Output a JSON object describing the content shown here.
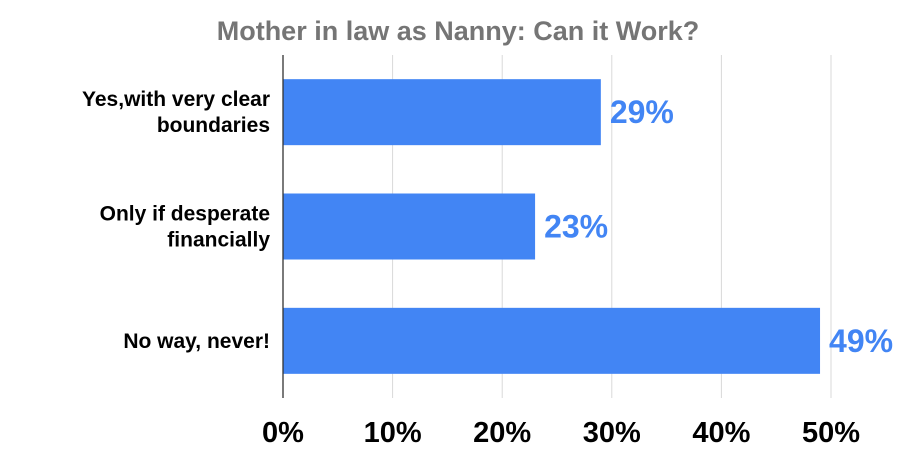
{
  "chart_data": {
    "type": "bar",
    "orientation": "horizontal",
    "title": "Mother in law as Nanny: Can it Work?",
    "categories": [
      [
        "Yes,with very clear",
        "boundaries"
      ],
      [
        "Only if desperate",
        "financially"
      ],
      [
        "No way, never!"
      ]
    ],
    "values": [
      29,
      23,
      49
    ],
    "data_labels": [
      "29%",
      "23%",
      "49%"
    ],
    "xlim": [
      0,
      50
    ],
    "xticks": [
      0,
      10,
      20,
      30,
      40,
      50
    ],
    "xtick_labels": [
      "0%",
      "10%",
      "20%",
      "30%",
      "40%",
      "50%"
    ],
    "grid": "vertical",
    "legend": "none",
    "colors": {
      "bar": "#4285f4",
      "data_label": "#4285f4",
      "grid": "#d9d9d9",
      "axis": "#333333",
      "title": "#757575"
    }
  }
}
